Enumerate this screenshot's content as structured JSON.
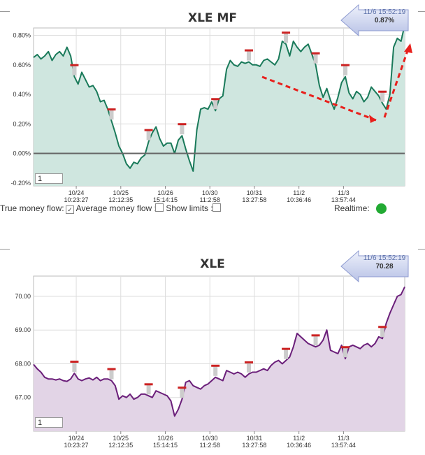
{
  "charts": [
    {
      "title": "XLE MF",
      "tooltip": {
        "time": "11/6 15:52:19",
        "value": "0.87%"
      },
      "input_value": "1",
      "y_ticks": [
        "0.80%",
        "0.60%",
        "0.40%",
        "0.20%",
        "0.00%",
        "-0.20%"
      ],
      "x_ticks": [
        {
          "date": "10/24",
          "time": "10:23:27"
        },
        {
          "date": "10/25",
          "time": "12:12:35"
        },
        {
          "date": "10/26",
          "time": "15:14:15"
        },
        {
          "date": "10/30",
          "time": "11:2:58"
        },
        {
          "date": "10/31",
          "time": "13:27:58"
        },
        {
          "date": "11/2",
          "time": "10:36:46"
        },
        {
          "date": "11/3",
          "time": "13:57:44"
        }
      ]
    },
    {
      "title": "XLE",
      "tooltip": {
        "time": "11/6 15:52:19",
        "value": "70.28"
      },
      "input_value": "1",
      "y_ticks": [
        "70.00",
        "69.00",
        "68.00",
        "67.00"
      ],
      "x_ticks": [
        {
          "date": "10/24",
          "time": "10:23:27"
        },
        {
          "date": "10/25",
          "time": "12:12:35"
        },
        {
          "date": "10/26",
          "time": "15:14:15"
        },
        {
          "date": "10/30",
          "time": "11:2:58"
        },
        {
          "date": "10/31",
          "time": "13:27:58"
        },
        {
          "date": "11/2",
          "time": "10:36:46"
        },
        {
          "date": "11/3",
          "time": "13:57:44"
        }
      ]
    }
  ],
  "controls": {
    "true_money_flow_label": "True money flow:",
    "average_money_flow_label": "Average money flow :",
    "show_limits_label": "Show limits :",
    "realtime_label": "Realtime:",
    "true_money_flow_checked": true,
    "average_money_flow_checked": false,
    "show_limits_checked": false
  },
  "colors": {
    "mf_line": "#1a7a5a",
    "mf_fill": "#cfe6df",
    "price_line": "#6b1f7a",
    "price_fill": "#e2d4e6",
    "zero_line": "#666666",
    "trend_arrow": "#e8201c",
    "marker": "#cc2222",
    "realtime_dot": "#22aa33"
  },
  "chart_data": [
    {
      "type": "area",
      "title": "XLE MF",
      "ylim": [
        -0.22,
        0.85
      ],
      "x_range": [
        0,
        1
      ],
      "x": [
        0.0,
        0.01,
        0.02,
        0.03,
        0.04,
        0.05,
        0.06,
        0.07,
        0.08,
        0.09,
        0.1,
        0.11,
        0.12,
        0.13,
        0.14,
        0.15,
        0.16,
        0.17,
        0.18,
        0.19,
        0.2,
        0.21,
        0.22,
        0.23,
        0.24,
        0.25,
        0.26,
        0.27,
        0.28,
        0.29,
        0.3,
        0.31,
        0.32,
        0.33,
        0.34,
        0.35,
        0.36,
        0.37,
        0.38,
        0.39,
        0.4,
        0.41,
        0.42,
        0.43,
        0.44,
        0.45,
        0.46,
        0.47,
        0.48,
        0.49,
        0.5,
        0.51,
        0.52,
        0.53,
        0.54,
        0.55,
        0.56,
        0.57,
        0.58,
        0.59,
        0.6,
        0.61,
        0.62,
        0.63,
        0.64,
        0.65,
        0.66,
        0.67,
        0.68,
        0.69,
        0.7,
        0.71,
        0.72,
        0.73,
        0.74,
        0.75,
        0.76,
        0.77,
        0.78,
        0.79,
        0.8,
        0.81,
        0.82,
        0.83,
        0.84,
        0.85,
        0.86,
        0.87,
        0.88,
        0.89,
        0.9,
        0.91,
        0.92,
        0.93,
        0.94,
        0.95,
        0.96,
        0.97,
        0.98,
        0.99,
        1.0
      ],
      "series": [
        {
          "values": [
            0.65,
            0.67,
            0.64,
            0.66,
            0.69,
            0.63,
            0.67,
            0.69,
            0.66,
            0.72,
            0.66,
            0.52,
            0.47,
            0.55,
            0.5,
            0.45,
            0.46,
            0.42,
            0.35,
            0.36,
            0.3,
            0.22,
            0.14,
            0.05,
            0.0,
            -0.07,
            -0.1,
            -0.06,
            -0.07,
            -0.03,
            -0.01,
            0.08,
            0.14,
            0.18,
            0.1,
            0.05,
            0.07,
            0.07,
            0.0,
            0.09,
            0.12,
            0.03,
            -0.05,
            -0.12,
            0.16,
            0.3,
            0.31,
            0.3,
            0.35,
            0.29,
            0.37,
            0.39,
            0.57,
            0.63,
            0.6,
            0.59,
            0.62,
            0.61,
            0.62,
            0.6,
            0.6,
            0.59,
            0.63,
            0.64,
            0.62,
            0.6,
            0.64,
            0.76,
            0.74,
            0.66,
            0.76,
            0.72,
            0.69,
            0.72,
            0.74,
            0.67,
            0.6,
            0.46,
            0.38,
            0.44,
            0.36,
            0.3,
            0.38,
            0.48,
            0.52,
            0.41,
            0.37,
            0.42,
            0.4,
            0.35,
            0.38,
            0.45,
            0.42,
            0.39,
            0.34,
            0.3,
            0.4,
            0.72,
            0.78,
            0.76,
            0.87
          ]
        }
      ],
      "markers": [
        0.11,
        0.21,
        0.31,
        0.4,
        0.49,
        0.58,
        0.68,
        0.76,
        0.84,
        0.94
      ]
    },
    {
      "type": "area",
      "title": "XLE",
      "ylim": [
        66.0,
        70.6
      ],
      "x_range": [
        0,
        1
      ],
      "x": [
        0.0,
        0.01,
        0.02,
        0.03,
        0.04,
        0.05,
        0.06,
        0.07,
        0.08,
        0.09,
        0.1,
        0.11,
        0.12,
        0.13,
        0.14,
        0.15,
        0.16,
        0.17,
        0.18,
        0.19,
        0.2,
        0.21,
        0.22,
        0.23,
        0.24,
        0.25,
        0.26,
        0.27,
        0.28,
        0.29,
        0.3,
        0.31,
        0.32,
        0.33,
        0.34,
        0.35,
        0.36,
        0.37,
        0.38,
        0.39,
        0.4,
        0.41,
        0.42,
        0.43,
        0.44,
        0.45,
        0.46,
        0.47,
        0.48,
        0.49,
        0.5,
        0.51,
        0.52,
        0.53,
        0.54,
        0.55,
        0.56,
        0.57,
        0.58,
        0.59,
        0.6,
        0.61,
        0.62,
        0.63,
        0.64,
        0.65,
        0.66,
        0.67,
        0.68,
        0.69,
        0.7,
        0.71,
        0.72,
        0.73,
        0.74,
        0.75,
        0.76,
        0.77,
        0.78,
        0.79,
        0.8,
        0.81,
        0.82,
        0.83,
        0.84,
        0.85,
        0.86,
        0.87,
        0.88,
        0.89,
        0.9,
        0.91,
        0.92,
        0.93,
        0.94,
        0.95,
        0.96,
        0.97,
        0.98,
        0.99,
        1.0
      ],
      "series": [
        {
          "values": [
            67.98,
            67.85,
            67.75,
            67.6,
            67.55,
            67.55,
            67.52,
            67.55,
            67.5,
            67.48,
            67.55,
            67.72,
            67.55,
            67.5,
            67.55,
            67.58,
            67.52,
            67.6,
            67.5,
            67.55,
            67.55,
            67.5,
            67.35,
            66.95,
            67.05,
            67.0,
            67.1,
            66.95,
            67.0,
            67.1,
            67.1,
            67.05,
            67.0,
            67.2,
            67.15,
            67.1,
            67.05,
            66.9,
            66.45,
            66.65,
            66.95,
            67.45,
            67.5,
            67.35,
            67.3,
            67.25,
            67.35,
            67.4,
            67.5,
            67.6,
            67.55,
            67.5,
            67.8,
            67.75,
            67.7,
            67.75,
            67.7,
            67.6,
            67.7,
            67.75,
            67.75,
            67.8,
            67.85,
            67.8,
            67.95,
            68.05,
            68.1,
            68.0,
            68.1,
            68.2,
            68.5,
            68.9,
            68.8,
            68.7,
            68.6,
            68.55,
            68.5,
            68.55,
            68.7,
            69.0,
            68.4,
            68.35,
            68.3,
            68.55,
            68.15,
            68.5,
            68.55,
            68.5,
            68.45,
            68.55,
            68.6,
            68.5,
            68.6,
            68.8,
            68.75,
            69.2,
            69.5,
            69.75,
            70.0,
            70.05,
            70.28
          ]
        }
      ],
      "markers": [
        0.11,
        0.21,
        0.31,
        0.4,
        0.49,
        0.58,
        0.68,
        0.76,
        0.84,
        0.94
      ]
    }
  ]
}
